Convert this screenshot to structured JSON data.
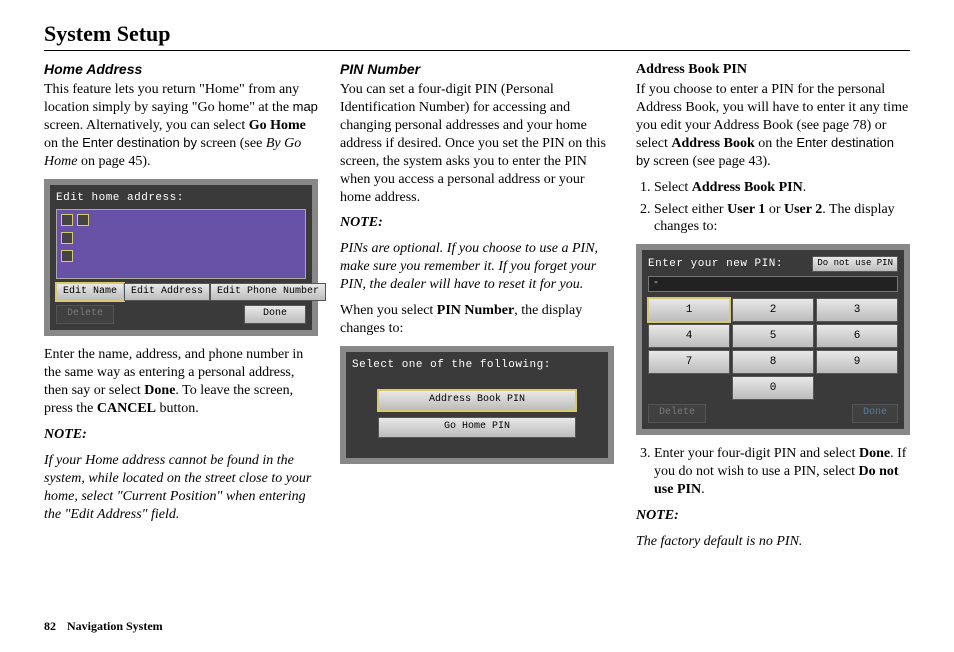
{
  "page": {
    "title": "System Setup",
    "number": "82",
    "footer_label": "Navigation System"
  },
  "col1": {
    "heading": "Home Address",
    "para1a": "This feature lets you return \"Home\" from any location simply by saying \"Go home\" at the ",
    "map_word": "map",
    "para1b": " screen. Alternatively, you can select ",
    "go_home": "Go Home",
    "para1c": " on the ",
    "enter_dest": "Enter destination by",
    "para1d": " screen (see ",
    "by_go_home": "By Go Home",
    "para1e": " on page 45).",
    "shot": {
      "title": "Edit home address:",
      "btn_edit_name": "Edit Name",
      "btn_edit_addr": "Edit Address",
      "btn_edit_phone": "Edit Phone Number",
      "delete": "Delete",
      "done": "Done"
    },
    "para2a": "Enter the name, address, and phone number in the same way as entering a personal address, then say or select ",
    "done": "Done",
    "para2b": ". To leave the screen, press the ",
    "cancel": "CANCEL",
    "para2c": " button.",
    "note_label": "NOTE:",
    "note_body": "If your Home address cannot be found in the system, while located on the street close to your home, select \"Current Position\" when entering the \"Edit Address\" field."
  },
  "col2": {
    "heading": "PIN Number",
    "para1": "You can set a four-digit PIN (Personal Identification Number) for accessing and changing personal addresses and your home address if desired. Once you set the PIN on this screen, the system asks you to enter the PIN when you access a personal address or your home address.",
    "note_label": "NOTE:",
    "note_body": "PINs are optional. If you choose to use a PIN, make sure you remember it. If you forget your PIN, the dealer will have to reset it for you.",
    "para2a": "When you select ",
    "pin_number": "PIN Number",
    "para2b": ", the display changes to:",
    "shot": {
      "title": "Select one of the following:",
      "btn_addr_pin": "Address Book PIN",
      "btn_gohome_pin": "Go Home PIN"
    }
  },
  "col3": {
    "heading": "Address Book PIN",
    "para1a": "If you choose to enter a PIN for the personal Address Book, you will have to enter it any time you edit your Address Book (see page 78) or select ",
    "addr_book": "Address Book",
    "para1b": " on the ",
    "enter_dest": "Enter destination by",
    "para1c": " screen (see page 43).",
    "li1a": "Select ",
    "li1b": "Address Book PIN",
    "li1c": ".",
    "li2a": "Select either ",
    "user1": "User 1",
    "li2b": " or ",
    "user2": "User 2",
    "li2c": ". The display changes to:",
    "shot": {
      "title": "Enter your new PIN:",
      "no_pin": "Do not use PIN",
      "pin_display": "-",
      "keys": [
        "1",
        "2",
        "3",
        "4",
        "5",
        "6",
        "7",
        "8",
        "9",
        "",
        "0",
        ""
      ],
      "delete": "Delete",
      "done": "Done"
    },
    "li3a": "Enter your four-digit PIN and select ",
    "done": "Done",
    "li3b": ". If you do not wish to use a PIN, select ",
    "no_pin": "Do not use PIN",
    "li3c": ".",
    "note_label": "NOTE:",
    "note_body": "The factory default is no PIN."
  }
}
